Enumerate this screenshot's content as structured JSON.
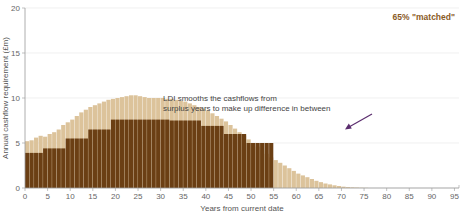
{
  "chart_data": {
    "type": "bar",
    "title": "65% \"matched\"",
    "y_label": "Annual cashflow requirement (£m)",
    "x_label": "Years from current date",
    "annotation": [
      "LDI smooths the cashflows from",
      "surplus years to make up difference in between"
    ],
    "stacked": false,
    "grid": true,
    "x": [
      0,
      1,
      2,
      3,
      4,
      5,
      6,
      7,
      8,
      9,
      10,
      11,
      12,
      13,
      14,
      15,
      16,
      17,
      18,
      19,
      20,
      21,
      22,
      23,
      24,
      25,
      26,
      27,
      28,
      29,
      30,
      31,
      32,
      33,
      34,
      35,
      36,
      37,
      38,
      39,
      40,
      41,
      42,
      43,
      44,
      45,
      46,
      47,
      48,
      49,
      50,
      51,
      52,
      53,
      54,
      55,
      56,
      57,
      58,
      59,
      60,
      61,
      62,
      63,
      64,
      65,
      66,
      67,
      68,
      69,
      70,
      71,
      72,
      73,
      74,
      75
    ],
    "xlim": [
      0,
      96
    ],
    "xticks": [
      0,
      5,
      10,
      15,
      20,
      25,
      30,
      35,
      40,
      45,
      50,
      55,
      60,
      65,
      70,
      75,
      80,
      85,
      90,
      95
    ],
    "ylim": [
      0,
      20
    ],
    "yticks": [
      0,
      5,
      10,
      15,
      20
    ],
    "series": [
      {
        "color": "#dcc39b",
        "values": [
          5.2,
          5.3,
          5.6,
          5.8,
          5.7,
          6.0,
          6.2,
          6.5,
          7.0,
          7.3,
          7.6,
          8.0,
          8.4,
          8.7,
          9.0,
          9.2,
          9.4,
          9.6,
          9.8,
          9.9,
          10.0,
          10.1,
          10.2,
          10.3,
          10.3,
          10.2,
          10.1,
          10.0,
          10.0,
          10.0,
          10.0,
          9.9,
          9.9,
          9.8,
          9.7,
          9.6,
          9.4,
          9.2,
          9.0,
          8.8,
          8.6,
          8.3,
          8.0,
          7.7,
          7.4,
          7.0,
          6.6,
          6.2,
          5.8,
          5.4,
          5.0,
          4.6,
          4.2,
          3.8,
          3.4,
          3.1,
          2.8,
          2.5,
          2.2,
          1.9,
          1.6,
          1.4,
          1.2,
          1.0,
          0.8,
          0.65,
          0.5,
          0.4,
          0.3,
          0.22,
          0.15,
          0.1,
          0.07,
          0.05,
          0.03,
          0.02
        ]
      },
      {
        "color": "#6b3f14",
        "values": [
          3.9,
          3.9,
          3.9,
          3.9,
          4.4,
          4.4,
          4.4,
          4.4,
          4.4,
          5.5,
          5.5,
          5.5,
          5.5,
          5.5,
          6.5,
          6.5,
          6.5,
          6.5,
          6.5,
          7.6,
          7.6,
          7.6,
          7.6,
          7.6,
          7.6,
          7.6,
          7.6,
          7.6,
          7.6,
          7.6,
          7.6,
          7.6,
          7.5,
          7.5,
          7.5,
          7.5,
          7.5,
          7.5,
          7.5,
          6.9,
          6.9,
          6.9,
          6.9,
          6.9,
          6.0,
          6.0,
          6.0,
          6.0,
          6.0,
          5.0,
          5.0,
          5.0,
          5.0,
          5.0,
          5.0,
          null,
          null,
          null,
          null,
          null,
          null,
          null,
          null,
          null,
          null,
          null,
          null,
          null,
          null,
          null,
          null,
          null,
          null,
          null,
          null,
          null
        ]
      }
    ]
  }
}
